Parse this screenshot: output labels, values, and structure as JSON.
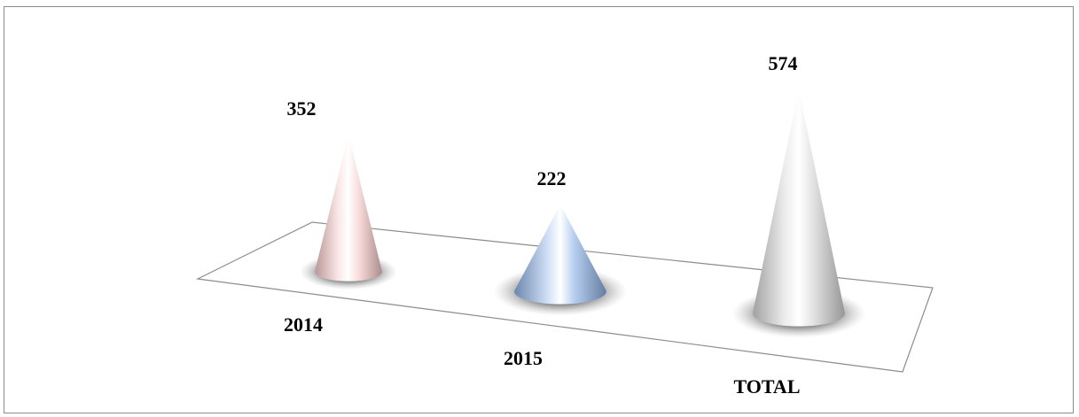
{
  "chart_data": {
    "type": "bar",
    "style": "3d-cone",
    "categories": [
      "2014",
      "2015",
      "TOTAL"
    ],
    "values": [
      352,
      222,
      574
    ],
    "data_labels": [
      "352",
      "222",
      "574"
    ],
    "colors": [
      "#f6c9c9",
      "#8fb3e6",
      "#d6d6d6"
    ],
    "title": "",
    "xlabel": "",
    "ylabel": "",
    "grid": false,
    "legend": "none"
  }
}
